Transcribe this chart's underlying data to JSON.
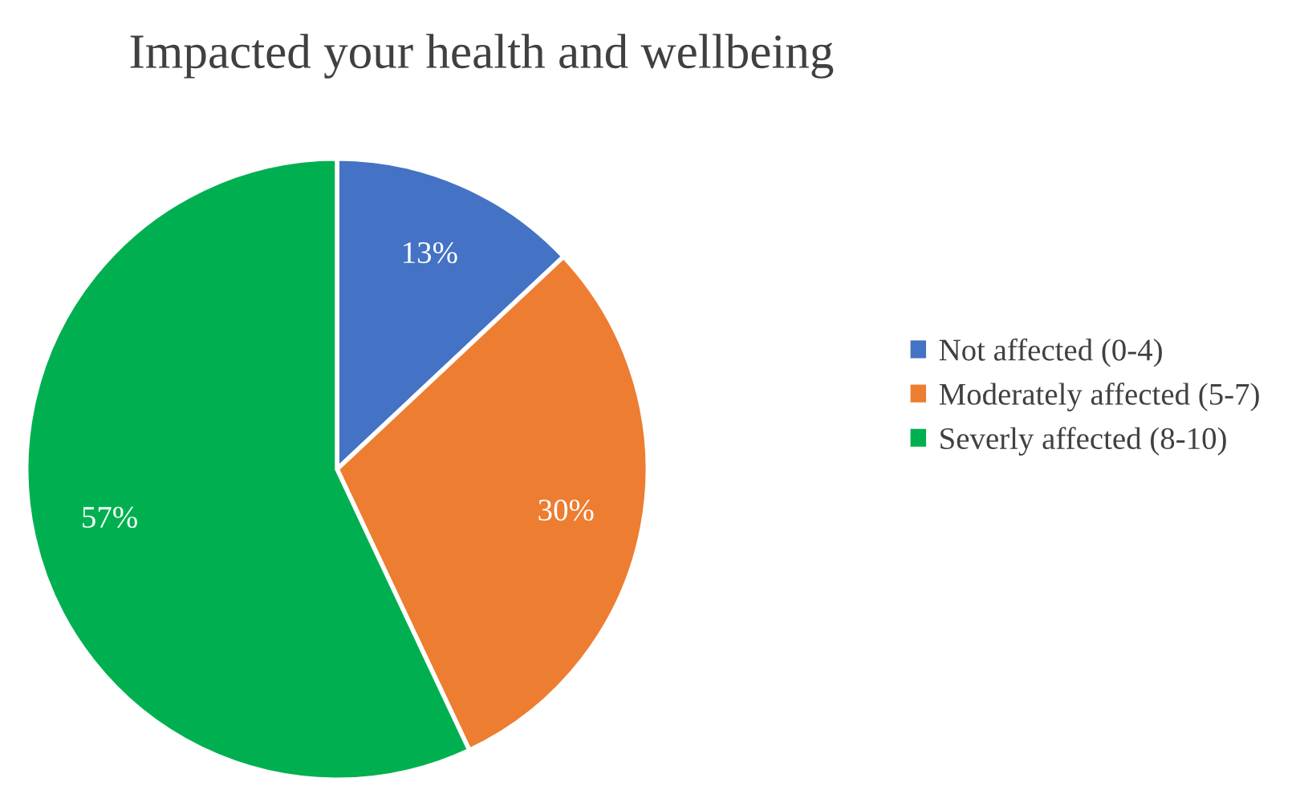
{
  "chart_data": {
    "type": "pie",
    "title": "Impacted your health and wellbeing",
    "categories": [
      "Not affected (0-4)",
      "Moderately affected (5-7)",
      "Severly affected (8-10)"
    ],
    "values": [
      13,
      30,
      57
    ],
    "colors": [
      "#4472c4",
      "#ed7d31",
      "#00b050"
    ],
    "value_labels": [
      "13%",
      "30%",
      "57%"
    ],
    "legend": "right"
  }
}
